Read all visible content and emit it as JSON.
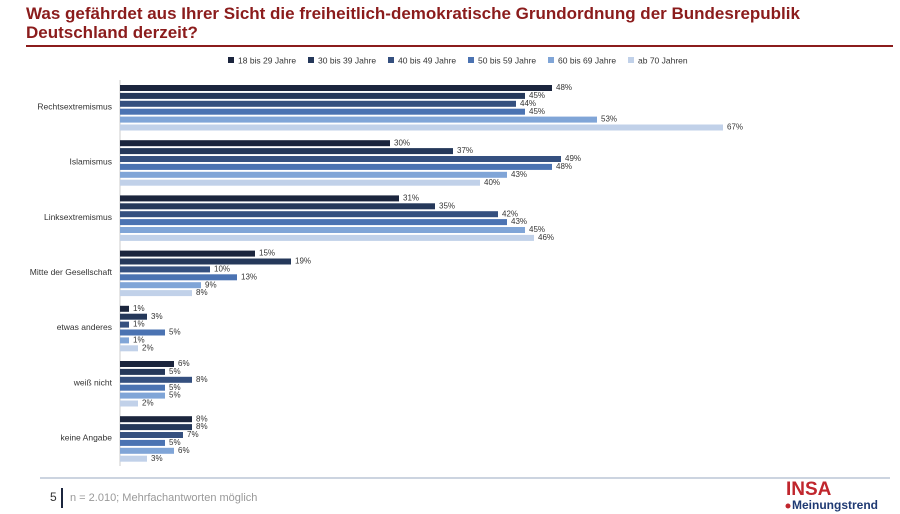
{
  "chart_data": {
    "type": "bar",
    "orientation": "horizontal",
    "title": "Was gefährdet aus Ihrer Sicht die freiheitlich-demokratische Grundordnung der Bundesrepublik Deutschland derzeit?",
    "categories": [
      "Rechtsextremismus",
      "Islamismus",
      "Linksextremismus",
      "Mitte der Gesellschaft",
      "etwas anderes",
      "weiß nicht",
      "keine Angabe"
    ],
    "series": [
      {
        "name": "18 bis 29 Jahre",
        "color": "#1b253d",
        "values": [
          48,
          30,
          31,
          15,
          1,
          6,
          8
        ],
        "value_labels": [
          "48%",
          "30%",
          "31%",
          "15%",
          "1%",
          "6%",
          "8%"
        ]
      },
      {
        "name": "30 bis 39 Jahre",
        "color": "#25385a",
        "values": [
          45,
          37,
          35,
          19,
          3,
          5,
          8
        ],
        "value_labels": [
          "45%",
          "37%",
          "35%",
          "19%",
          "3%",
          "5%",
          "8%"
        ]
      },
      {
        "name": "40 bis 49 Jahre",
        "color": "#35507f",
        "values": [
          44,
          49,
          42,
          10,
          1,
          8,
          7
        ],
        "value_labels": [
          "44%",
          "49%",
          "42%",
          "10%",
          "1%",
          "8%",
          "7%"
        ]
      },
      {
        "name": "50 bis 59 Jahre",
        "color": "#4b73b2",
        "values": [
          45,
          48,
          43,
          13,
          5,
          5,
          5
        ],
        "value_labels": [
          "45%",
          "48%",
          "43%",
          "13%",
          "5%",
          "5%",
          "5%"
        ]
      },
      {
        "name": "60 bis 69 Jahre",
        "color": "#80a5d7",
        "values": [
          53,
          43,
          45,
          9,
          1,
          5,
          6
        ],
        "value_labels": [
          "53%",
          "43%",
          "45%",
          "9%",
          "1%",
          "5%",
          "6%"
        ]
      },
      {
        "name": "ab 70 Jahren",
        "color": "#c1d1e9",
        "values": [
          67,
          40,
          46,
          8,
          2,
          2,
          3
        ],
        "value_labels": [
          "67%",
          "40%",
          "46%",
          "8%",
          "2%",
          "2%",
          "3%"
        ]
      }
    ]
  },
  "footer": {
    "page": "5",
    "note": "n = 2.010; Mehrfachantworten möglich"
  },
  "logo": {
    "brand": "INSA",
    "sub": "Meinungstrend"
  }
}
